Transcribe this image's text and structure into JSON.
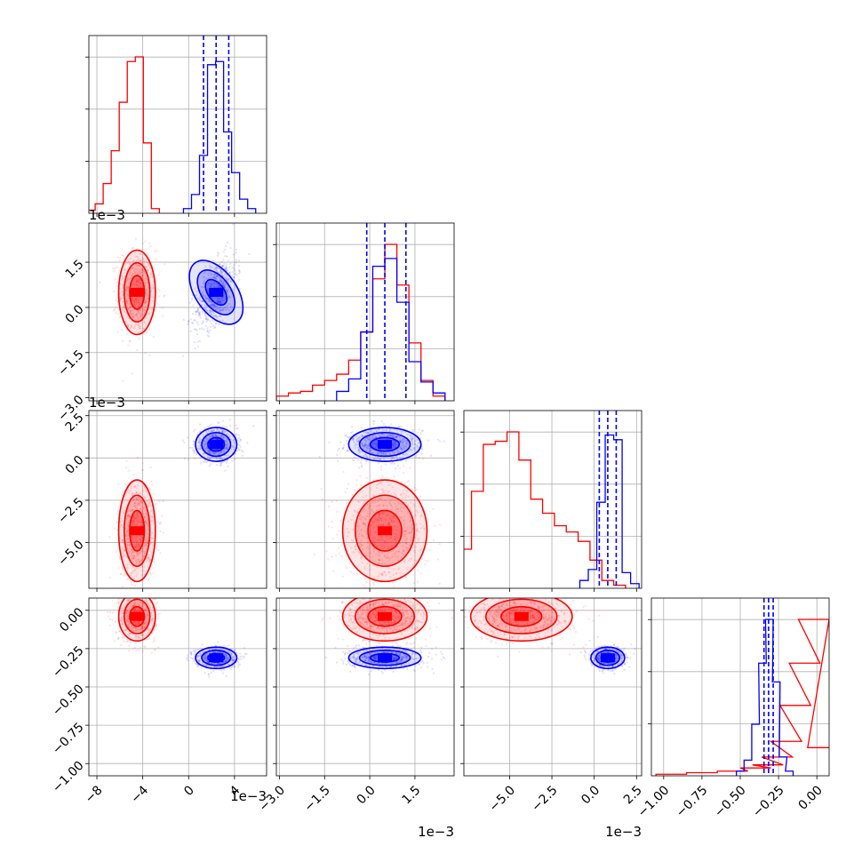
{
  "chart_data": {
    "type": "scatter",
    "layout": "corner plot (4 parameters, lower triangle)",
    "grid": true,
    "series": [
      {
        "color": "#ff0000",
        "params": [
          {
            "center": -0.0045,
            "sd": 0.0008
          },
          {
            "center": 0.0005,
            "sd": 0.0007
          },
          {
            "center": -0.0043,
            "sd": 0.0015
          },
          {
            "center": -0.04,
            "sd": 0.08
          }
        ],
        "hist_1": [
          {
            "x": -0.0085,
            "h": 0.02
          },
          {
            "x": -0.0078,
            "h": 0.06
          },
          {
            "x": -0.0071,
            "h": 0.19
          },
          {
            "x": -0.0064,
            "h": 0.4
          },
          {
            "x": -0.0057,
            "h": 0.71
          },
          {
            "x": -0.005,
            "h": 0.97
          },
          {
            "x": -0.0043,
            "h": 1.0
          },
          {
            "x": -0.0036,
            "h": 0.45
          },
          {
            "x": -0.0029,
            "h": 0.03
          }
        ],
        "hist_2": [
          {
            "x": -0.0029,
            "h": 0.03
          },
          {
            "x": -0.0025,
            "h": 0.05
          },
          {
            "x": -0.0021,
            "h": 0.06
          },
          {
            "x": -0.0017,
            "h": 0.1
          },
          {
            "x": -0.0013,
            "h": 0.13
          },
          {
            "x": -0.0009,
            "h": 0.17
          },
          {
            "x": -0.0005,
            "h": 0.26
          },
          {
            "x": -0.0001,
            "h": 0.44
          },
          {
            "x": 0.0003,
            "h": 0.78
          },
          {
            "x": 0.0007,
            "h": 1.0
          },
          {
            "x": 0.0011,
            "h": 0.74
          },
          {
            "x": 0.0015,
            "h": 0.37
          },
          {
            "x": 0.0019,
            "h": 0.13
          },
          {
            "x": 0.0023,
            "h": 0.03
          }
        ],
        "hist_3": [
          {
            "x": -0.0076,
            "h": 0.25
          },
          {
            "x": -0.0069,
            "h": 0.62
          },
          {
            "x": -0.0062,
            "h": 0.92
          },
          {
            "x": -0.0055,
            "h": 0.94
          },
          {
            "x": -0.0048,
            "h": 1.0
          },
          {
            "x": -0.0041,
            "h": 0.82
          },
          {
            "x": -0.0034,
            "h": 0.57
          },
          {
            "x": -0.0027,
            "h": 0.48
          },
          {
            "x": -0.002,
            "h": 0.4
          },
          {
            "x": -0.0013,
            "h": 0.36
          },
          {
            "x": -0.0006,
            "h": 0.3
          },
          {
            "x": 0.0001,
            "h": 0.18
          },
          {
            "x": 0.0008,
            "h": 0.05
          },
          {
            "x": 0.0015,
            "h": 0.02
          }
        ],
        "hist_4": [
          {
            "x": -0.95,
            "h": 0.01
          },
          {
            "x": -0.75,
            "h": 0.02
          },
          {
            "x": -0.55,
            "h": 0.03
          },
          {
            "x": -0.4,
            "h": 0.05
          },
          {
            "x": -0.32,
            "h": 0.07
          },
          {
            "x": -0.26,
            "h": 0.12
          },
          {
            "x": -0.2,
            "h": 0.22
          },
          {
            "x": -0.14,
            "h": 0.45
          },
          {
            "x": -0.08,
            "h": 0.72
          },
          {
            "x": -0.02,
            "h": 1.0
          },
          {
            "x": 0.04,
            "h": 0.18
          }
        ]
      },
      {
        "color": "#0000ff",
        "params": [
          {
            "center": 0.0024,
            "sd": 0.0009
          },
          {
            "center": 0.0005,
            "sd": 0.0006
          },
          {
            "center": 0.0008,
            "sd": 0.0005
          },
          {
            "center": -0.31,
            "sd": 0.035
          }
        ],
        "quantiles": [
          [
            0.0013,
            0.0024,
            0.0035
          ],
          [
            -0.0001,
            0.0005,
            0.0012
          ],
          [
            0.0003,
            0.0008,
            0.0013
          ],
          [
            -0.345,
            -0.315,
            -0.285
          ]
        ],
        "hist_1": [
          {
            "x": -0.0001,
            "h": 0.03
          },
          {
            "x": 0.0006,
            "h": 0.12
          },
          {
            "x": 0.0013,
            "h": 0.37
          },
          {
            "x": 0.002,
            "h": 0.95
          },
          {
            "x": 0.0027,
            "h": 0.97
          },
          {
            "x": 0.0034,
            "h": 0.52
          },
          {
            "x": 0.0041,
            "h": 0.26
          },
          {
            "x": 0.0048,
            "h": 0.09
          },
          {
            "x": 0.0055,
            "h": 0.03
          }
        ],
        "hist_2": [
          {
            "x": -0.0009,
            "h": 0.06
          },
          {
            "x": -0.0005,
            "h": 0.14
          },
          {
            "x": -0.0001,
            "h": 0.44
          },
          {
            "x": 0.0003,
            "h": 0.86
          },
          {
            "x": 0.0007,
            "h": 0.91
          },
          {
            "x": 0.0011,
            "h": 0.63
          },
          {
            "x": 0.0015,
            "h": 0.25
          },
          {
            "x": 0.0019,
            "h": 0.12
          },
          {
            "x": 0.0023,
            "h": 0.05
          }
        ],
        "hist_3": [
          {
            "x": -0.0006,
            "h": 0.05
          },
          {
            "x": -0.0001,
            "h": 0.12
          },
          {
            "x": 0.0004,
            "h": 0.55
          },
          {
            "x": 0.0009,
            "h": 0.98
          },
          {
            "x": 0.0014,
            "h": 0.95
          },
          {
            "x": 0.0019,
            "h": 0.1
          },
          {
            "x": 0.0024,
            "h": 0.03
          }
        ],
        "hist_4": [
          {
            "x": -0.5,
            "h": 0.03
          },
          {
            "x": -0.45,
            "h": 0.1
          },
          {
            "x": -0.4,
            "h": 0.33
          },
          {
            "x": -0.355,
            "h": 0.72
          },
          {
            "x": -0.31,
            "h": 1.0
          },
          {
            "x": -0.265,
            "h": 0.6
          },
          {
            "x": -0.22,
            "h": 0.12
          },
          {
            "x": -0.18,
            "h": 0.03
          }
        ]
      }
    ],
    "axes": [
      {
        "range": [
          -0.0087,
          0.0068
        ],
        "ticks": [
          -0.008,
          -0.004,
          0.0,
          0.004
        ],
        "tick_labels": [
          "−8",
          "−4",
          "0",
          "4"
        ],
        "exponent": "1e−3"
      },
      {
        "range": [
          -0.0031,
          0.0028
        ],
        "ticks": [
          -0.003,
          -0.0015,
          0.0,
          0.0015
        ],
        "tick_labels": [
          "−3.0",
          "−1.5",
          "0.0",
          "1.5"
        ],
        "exponent": "1e−3"
      },
      {
        "range": [
          -0.0077,
          0.0028
        ],
        "ticks": [
          -0.005,
          -0.0025,
          0.0,
          0.0025
        ],
        "tick_labels": [
          "−5.0",
          "−2.5",
          "0.0",
          "2.5"
        ],
        "exponent": "1e−3"
      },
      {
        "range": [
          -1.08,
          0.08
        ],
        "ticks": [
          -1.0,
          -0.75,
          -0.5,
          -0.25,
          0.0
        ],
        "tick_labels": [
          "−1.00",
          "−0.75",
          "−0.50",
          "−0.25",
          "0.00"
        ],
        "exponent": ""
      }
    ]
  }
}
